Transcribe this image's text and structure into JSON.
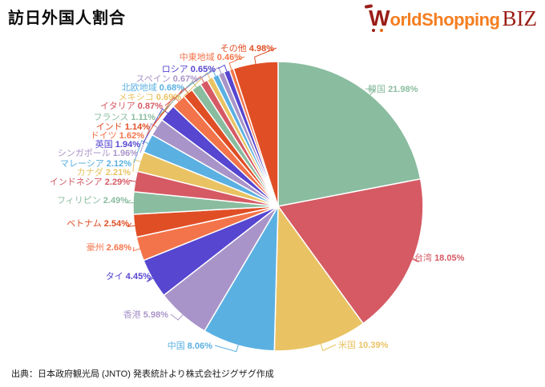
{
  "header": {
    "title": "訪日外国人割合"
  },
  "logo": {
    "w": "W",
    "rest": "orldShopping",
    "suffix": "BIZ",
    "orange": "#F57E20",
    "dark_red": "#9A1E17",
    "wheel_orange": "#E8680F"
  },
  "footer": {
    "source_text": "出典：日本政府観光局 (JNTO) 発表統計より株式会社ジグザグ作成"
  },
  "chart_data": {
    "type": "pie",
    "title": "訪日外国人割合",
    "unit": "%",
    "start_angle_deg": 0,
    "direction": "clockwise",
    "label_format": "{name} {value}%",
    "slice_border_color": "#ffffff",
    "palette_cycle": [
      "#8ABC9F",
      "#D55A64",
      "#E9C363",
      "#5BB0E2",
      "#A994C9",
      "#5646D0",
      "#F3744A",
      "#E04E25"
    ],
    "slices": [
      {
        "label": "韓国",
        "value": 21.98,
        "color": "#8ABC9F"
      },
      {
        "label": "台湾",
        "value": 18.05,
        "color": "#D55A64"
      },
      {
        "label": "米国",
        "value": 10.39,
        "color": "#E9C363"
      },
      {
        "label": "中国",
        "value": 8.06,
        "color": "#5BB0E2"
      },
      {
        "label": "香港",
        "value": 5.98,
        "color": "#A994C9"
      },
      {
        "label": "タイ",
        "value": 4.45,
        "color": "#5646D0"
      },
      {
        "label": "豪州",
        "value": 2.68,
        "color": "#F3744A"
      },
      {
        "label": "ベトナム",
        "value": 2.54,
        "color": "#E04E25"
      },
      {
        "label": "フィリピン",
        "value": 2.49,
        "color": "#8ABC9F"
      },
      {
        "label": "インドネシア",
        "value": 2.29,
        "color": "#D55A64"
      },
      {
        "label": "カナダ",
        "value": 2.21,
        "color": "#E9C363"
      },
      {
        "label": "マレーシア",
        "value": 2.12,
        "color": "#5BB0E2"
      },
      {
        "label": "シンガポール",
        "value": 1.96,
        "color": "#A994C9"
      },
      {
        "label": "英国",
        "value": 1.94,
        "color": "#5646D0"
      },
      {
        "label": "ドイツ",
        "value": 1.62,
        "color": "#F3744A"
      },
      {
        "label": "インド",
        "value": 1.14,
        "color": "#E04E25"
      },
      {
        "label": "フランス",
        "value": 1.11,
        "color": "#8ABC9F"
      },
      {
        "label": "イタリア",
        "value": 0.87,
        "color": "#D55A64"
      },
      {
        "label": "メキシコ",
        "value": 0.69,
        "color": "#E9C363"
      },
      {
        "label": "北欧地域",
        "value": 0.68,
        "color": "#5BB0E2"
      },
      {
        "label": "スペイン",
        "value": 0.67,
        "color": "#A994C9"
      },
      {
        "label": "ロシア",
        "value": 0.65,
        "color": "#5646D0"
      },
      {
        "label": "中東地域",
        "value": 0.46,
        "color": "#F3744A"
      },
      {
        "label": "その他",
        "value": 4.98,
        "color": "#E04E25"
      }
    ]
  }
}
